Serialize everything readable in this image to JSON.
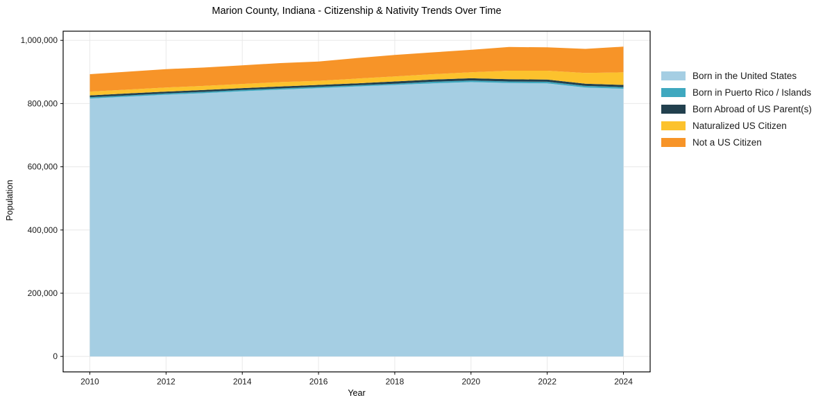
{
  "title": "Marion County, Indiana - Citizenship & Nativity Trends Over Time",
  "chart_data": {
    "type": "area",
    "stacked": true,
    "title": "Marion County, Indiana - Citizenship & Nativity Trends Over Time",
    "xlabel": "Year",
    "ylabel": "Population",
    "grid": true,
    "legend_position": "outside-right",
    "x": [
      2010,
      2011,
      2012,
      2013,
      2014,
      2015,
      2016,
      2017,
      2018,
      2019,
      2020,
      2021,
      2022,
      2023,
      2024
    ],
    "series": [
      {
        "name": "Born in the United States",
        "color": "#a5cee3",
        "values": [
          816000,
          822000,
          828000,
          833000,
          839000,
          844000,
          849000,
          854000,
          859000,
          864000,
          868000,
          865000,
          864000,
          851000,
          847000
        ]
      },
      {
        "name": "Born in Puerto Rico / Islands",
        "color": "#3fa8bf",
        "values": [
          4000,
          4000,
          4000,
          4000,
          4000,
          4000,
          4000,
          4000,
          4000,
          5000,
          5000,
          5000,
          5000,
          5000,
          5000
        ]
      },
      {
        "name": "Born Abroad of US Parent(s)",
        "color": "#22404e",
        "values": [
          6000,
          6000,
          6000,
          6000,
          6000,
          6000,
          6000,
          6000,
          7000,
          7000,
          7000,
          7000,
          7000,
          7000,
          7000
        ]
      },
      {
        "name": "Naturalized US Citizen",
        "color": "#fcc22d",
        "values": [
          12000,
          12000,
          13000,
          13000,
          13000,
          14000,
          13000,
          15000,
          16000,
          17000,
          19000,
          27000,
          28000,
          34000,
          40000
        ]
      },
      {
        "name": "Not a US Citizen",
        "color": "#f79428",
        "values": [
          55000,
          57000,
          58000,
          58000,
          59000,
          60000,
          61000,
          65000,
          68000,
          69000,
          71000,
          75000,
          74000,
          76000,
          81000
        ]
      }
    ],
    "xticks": [
      2010,
      2012,
      2014,
      2016,
      2018,
      2020,
      2022,
      2024
    ],
    "xtick_labels": [
      "2010",
      "2012",
      "2014",
      "2016",
      "2018",
      "2020",
      "2022",
      "2024"
    ],
    "yticks": [
      0,
      200000,
      400000,
      600000,
      800000,
      1000000
    ],
    "ytick_labels": [
      "0",
      "200,000",
      "400,000",
      "600,000",
      "800,000",
      "1,000,000"
    ],
    "xlim": [
      2009.3,
      2024.7
    ],
    "ylim": [
      -49000,
      1029000
    ],
    "grid_color": "#e8e8e8",
    "spine_color": "#000000"
  }
}
